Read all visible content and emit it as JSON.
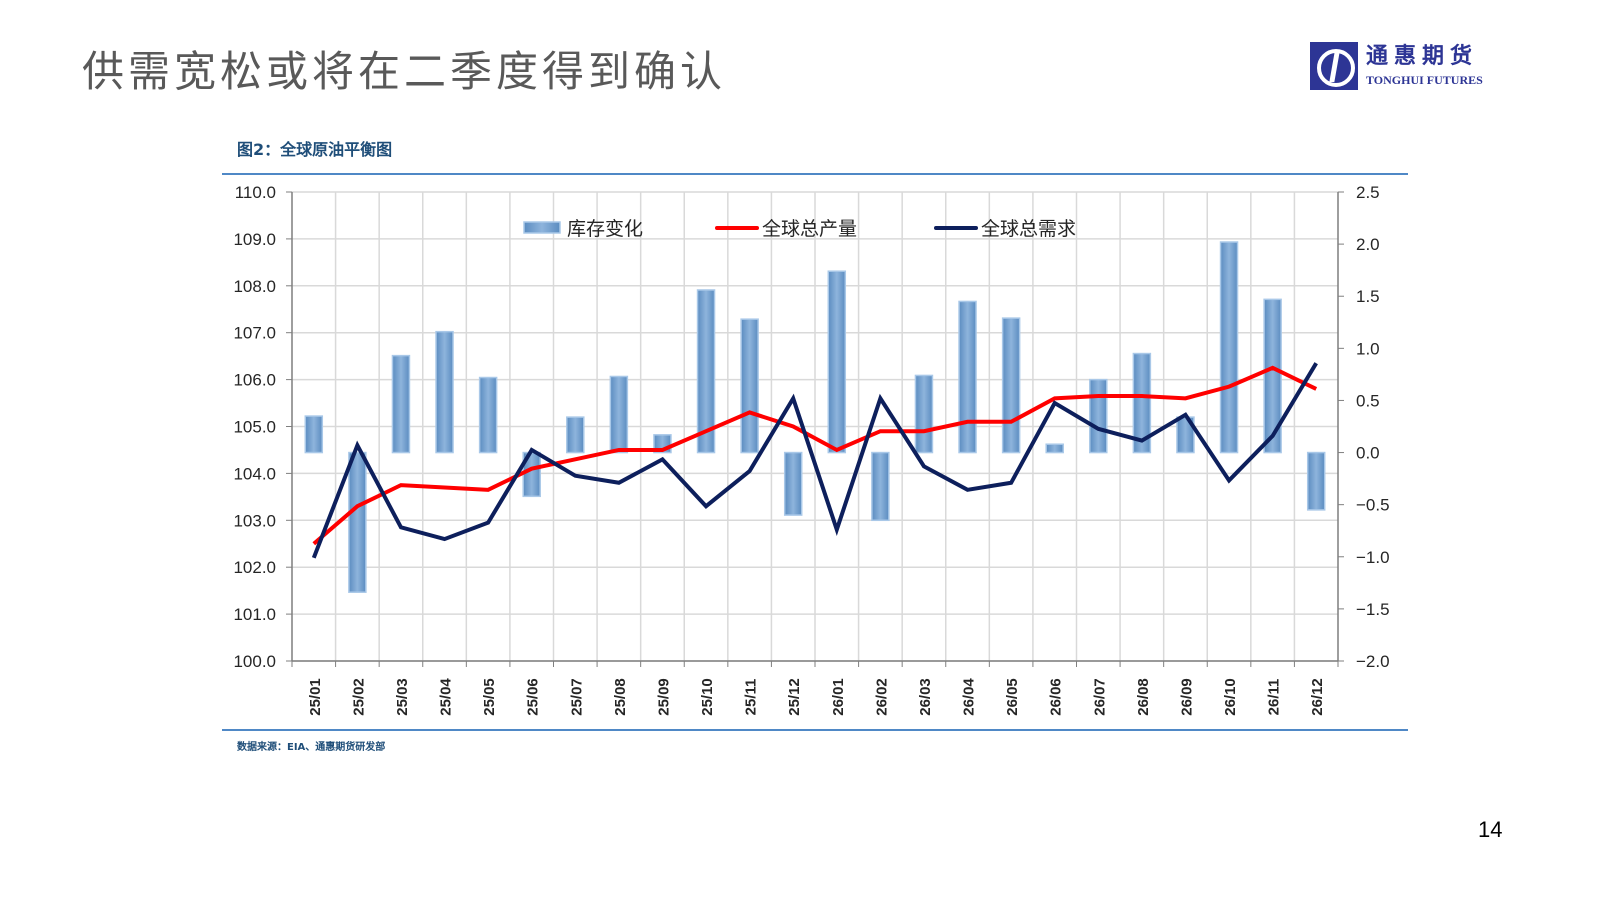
{
  "slide": {
    "title": "供需宽松或将在二季度得到确认",
    "page_number": "14"
  },
  "logo": {
    "cn": "通惠期货",
    "en": "TONGHUI FUTURES",
    "color": "#2d3595"
  },
  "figure": {
    "caption": "图2：全球原油平衡图",
    "source": "数据来源：EIA、通惠期货研发部"
  },
  "chart_data": {
    "type": "bar",
    "title": "图2：全球原油平衡图",
    "categories": [
      "25/01",
      "25/02",
      "25/03",
      "25/04",
      "25/05",
      "25/06",
      "25/07",
      "25/08",
      "25/09",
      "25/10",
      "25/11",
      "25/12",
      "26/01",
      "26/02",
      "26/03",
      "26/04",
      "26/05",
      "26/06",
      "26/07",
      "26/08",
      "26/09",
      "26/10",
      "26/11",
      "26/12"
    ],
    "left_axis": {
      "min": 100.0,
      "max": 110.0,
      "step": 1.0,
      "ticks": [
        "110.0",
        "109.0",
        "108.0",
        "107.0",
        "106.0",
        "105.0",
        "104.0",
        "103.0",
        "102.0",
        "101.0",
        "100.0"
      ]
    },
    "right_axis": {
      "min": -2.0,
      "max": 2.5,
      "step": 0.5,
      "ticks": [
        "2.5",
        "2.0",
        "1.5",
        "1.0",
        "0.5",
        "0.0",
        "−0.5",
        "−1.0",
        "−1.5",
        "−2.0"
      ]
    },
    "grid": true,
    "legend_position": "top-inside",
    "series": [
      {
        "name": "库存变化",
        "type": "bar",
        "axis": "right",
        "color": "#7aa7d4",
        "values": [
          0.35,
          -1.34,
          0.93,
          1.16,
          0.72,
          -0.42,
          0.34,
          0.73,
          0.17,
          1.56,
          1.28,
          -0.6,
          1.74,
          -0.65,
          0.74,
          1.45,
          1.29,
          0.08,
          0.7,
          0.95,
          0.34,
          2.02,
          1.47,
          -0.55
        ]
      },
      {
        "name": "全球总产量",
        "type": "line",
        "axis": "left",
        "color": "#ff0000",
        "values": [
          102.5,
          103.3,
          103.75,
          103.7,
          103.65,
          104.1,
          104.3,
          104.5,
          104.5,
          104.9,
          105.3,
          105.0,
          104.5,
          104.9,
          104.9,
          105.1,
          105.1,
          105.6,
          105.65,
          105.65,
          105.6,
          105.85,
          106.25,
          105.8
        ]
      },
      {
        "name": "全球总需求",
        "type": "line",
        "axis": "left",
        "color": "#0d1f5c",
        "values": [
          102.2,
          104.6,
          102.85,
          102.6,
          102.95,
          104.5,
          103.95,
          103.8,
          104.3,
          103.3,
          104.05,
          105.6,
          102.8,
          105.6,
          104.15,
          103.65,
          103.8,
          105.5,
          104.95,
          104.7,
          105.25,
          103.85,
          104.8,
          106.35
        ]
      }
    ]
  }
}
